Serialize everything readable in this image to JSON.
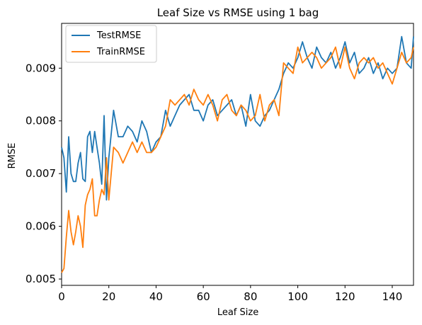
{
  "chart_data": {
    "type": "line",
    "title": "Leaf Size vs RMSE using 1 bag",
    "xlabel": "Leaf Size",
    "ylabel": "RMSE",
    "xlim": [
      0,
      149
    ],
    "ylim": [
      0.00488,
      0.00985
    ],
    "xticks": [
      0,
      20,
      40,
      60,
      80,
      100,
      120,
      140
    ],
    "xtick_labels": [
      "0",
      "20",
      "40",
      "60",
      "80",
      "100",
      "120",
      "140"
    ],
    "yticks": [
      0.005,
      0.006,
      0.007,
      0.008,
      0.009
    ],
    "ytick_labels": [
      "0.005",
      "0.006",
      "0.007",
      "0.008",
      "0.009"
    ],
    "legend_position": "top-left",
    "grid": false,
    "series": [
      {
        "name": "TestRMSE",
        "color": "#1f77b4",
        "x": [
          0,
          1,
          2,
          3,
          4,
          5,
          6,
          7,
          8,
          9,
          10,
          11,
          12,
          13,
          14,
          15,
          16,
          17,
          18,
          19,
          20,
          22,
          24,
          26,
          28,
          30,
          32,
          34,
          36,
          38,
          40,
          42,
          44,
          46,
          48,
          50,
          52,
          54,
          56,
          58,
          60,
          62,
          64,
          66,
          68,
          70,
          72,
          74,
          76,
          78,
          80,
          82,
          84,
          86,
          88,
          90,
          92,
          94,
          96,
          98,
          100,
          102,
          104,
          106,
          108,
          110,
          112,
          114,
          116,
          118,
          120,
          122,
          124,
          126,
          128,
          130,
          132,
          134,
          136,
          138,
          140,
          142,
          144,
          146,
          148,
          149
        ],
        "y": [
          0.0075,
          0.0073,
          0.00665,
          0.0077,
          0.007,
          0.00685,
          0.00685,
          0.0072,
          0.0074,
          0.0069,
          0.00685,
          0.0077,
          0.0078,
          0.0074,
          0.0078,
          0.0075,
          0.0072,
          0.0068,
          0.0081,
          0.0065,
          0.0073,
          0.0082,
          0.0077,
          0.0077,
          0.0079,
          0.0078,
          0.0076,
          0.008,
          0.0078,
          0.0074,
          0.0076,
          0.0077,
          0.0082,
          0.0079,
          0.0081,
          0.0083,
          0.0084,
          0.0085,
          0.0082,
          0.0082,
          0.008,
          0.0083,
          0.0084,
          0.0081,
          0.0082,
          0.0083,
          0.0084,
          0.0081,
          0.0083,
          0.0079,
          0.0085,
          0.008,
          0.0079,
          0.0081,
          0.0082,
          0.0084,
          0.0086,
          0.0089,
          0.0091,
          0.009,
          0.0092,
          0.0095,
          0.0092,
          0.009,
          0.0094,
          0.0092,
          0.0091,
          0.0093,
          0.009,
          0.0092,
          0.0095,
          0.0091,
          0.0093,
          0.0089,
          0.009,
          0.0092,
          0.0089,
          0.0091,
          0.0088,
          0.009,
          0.0089,
          0.009,
          0.0096,
          0.0091,
          0.009,
          0.0096
        ]
      },
      {
        "name": "TrainRMSE",
        "color": "#ff7f0e",
        "x": [
          0,
          1,
          2,
          3,
          4,
          5,
          6,
          7,
          8,
          9,
          10,
          11,
          12,
          13,
          14,
          15,
          16,
          17,
          18,
          19,
          20,
          22,
          24,
          26,
          28,
          30,
          32,
          34,
          36,
          38,
          40,
          42,
          44,
          46,
          48,
          50,
          52,
          54,
          56,
          58,
          60,
          62,
          64,
          66,
          68,
          70,
          72,
          74,
          76,
          78,
          80,
          82,
          84,
          86,
          88,
          90,
          92,
          94,
          96,
          98,
          100,
          102,
          104,
          106,
          108,
          110,
          112,
          114,
          116,
          118,
          120,
          122,
          124,
          126,
          128,
          130,
          132,
          134,
          136,
          138,
          140,
          142,
          144,
          146,
          148,
          149
        ],
        "y": [
          0.00512,
          0.0052,
          0.0058,
          0.0063,
          0.0059,
          0.00565,
          0.0059,
          0.0062,
          0.006,
          0.0056,
          0.0064,
          0.0066,
          0.0067,
          0.0069,
          0.0062,
          0.0062,
          0.0065,
          0.0067,
          0.0066,
          0.0073,
          0.0065,
          0.0075,
          0.0074,
          0.0072,
          0.0074,
          0.0076,
          0.0074,
          0.0076,
          0.0074,
          0.0074,
          0.0075,
          0.0077,
          0.0079,
          0.0084,
          0.0083,
          0.0084,
          0.0085,
          0.0083,
          0.0086,
          0.0084,
          0.0083,
          0.0085,
          0.0083,
          0.008,
          0.0084,
          0.0085,
          0.0082,
          0.0081,
          0.0083,
          0.0082,
          0.008,
          0.0081,
          0.0085,
          0.008,
          0.0083,
          0.0084,
          0.0081,
          0.0091,
          0.009,
          0.0089,
          0.0094,
          0.0091,
          0.0092,
          0.0093,
          0.0092,
          0.009,
          0.0091,
          0.0092,
          0.0094,
          0.009,
          0.0094,
          0.009,
          0.0088,
          0.0091,
          0.0092,
          0.0091,
          0.0092,
          0.009,
          0.0091,
          0.0089,
          0.0087,
          0.009,
          0.0093,
          0.0091,
          0.0092,
          0.0094
        ]
      }
    ]
  }
}
